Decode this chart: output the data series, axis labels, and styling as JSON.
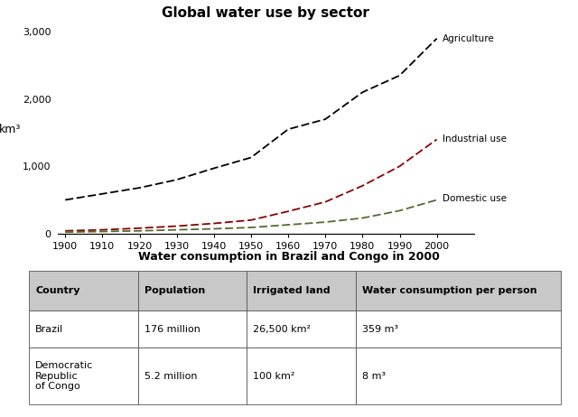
{
  "title": "Global water use by sector",
  "table_title": "Water consumption in Brazil and Congo in 2000",
  "ylabel": "km³",
  "years": [
    1900,
    1910,
    1920,
    1930,
    1940,
    1950,
    1960,
    1970,
    1980,
    1990,
    2000
  ],
  "agriculture": [
    500,
    590,
    680,
    800,
    970,
    1130,
    1550,
    1700,
    2100,
    2350,
    2900
  ],
  "industrial": [
    40,
    55,
    80,
    110,
    150,
    200,
    330,
    470,
    710,
    1000,
    1400
  ],
  "domestic": [
    20,
    30,
    40,
    55,
    70,
    90,
    130,
    170,
    230,
    340,
    500
  ],
  "agri_color": "#000000",
  "indus_color": "#8B0000",
  "domestic_color": "#556B2F",
  "xlim": [
    1898,
    2010
  ],
  "ylim": [
    0,
    3100
  ],
  "yticks": [
    0,
    1000,
    2000,
    3000
  ],
  "ytick_labels": [
    "0",
    "1,000",
    "2,000",
    "3,000"
  ],
  "xticks": [
    1900,
    1910,
    1920,
    1930,
    1940,
    1950,
    1960,
    1970,
    1980,
    1990,
    2000
  ],
  "background_color": "#ffffff",
  "table_headers": [
    "Country",
    "Population",
    "Irrigated land",
    "Water consumption per person"
  ],
  "table_row1": [
    "Brazil",
    "176 million",
    "26,500 km²",
    "359 m³"
  ],
  "table_row2": [
    "Democratic\nRepublic\nof Congo",
    "5.2 million",
    "100 km²",
    "8 m³"
  ],
  "header_bg": "#c8c8c8",
  "row_bg": "#ffffff",
  "agri_label": "Agriculture",
  "indus_label": "Industrial use",
  "dom_label": "Domestic use"
}
